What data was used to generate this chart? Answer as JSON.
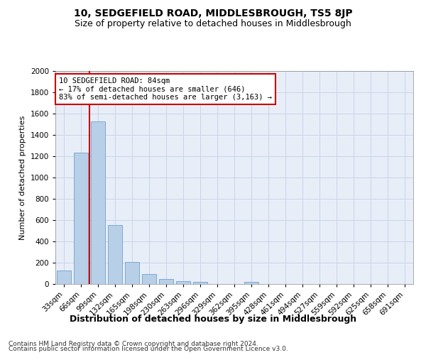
{
  "title": "10, SEDGEFIELD ROAD, MIDDLESBROUGH, TS5 8JP",
  "subtitle": "Size of property relative to detached houses in Middlesbrough",
  "xlabel": "Distribution of detached houses by size in Middlesbrough",
  "ylabel": "Number of detached properties",
  "categories": [
    "33sqm",
    "66sqm",
    "99sqm",
    "132sqm",
    "165sqm",
    "198sqm",
    "230sqm",
    "263sqm",
    "296sqm",
    "329sqm",
    "362sqm",
    "395sqm",
    "428sqm",
    "461sqm",
    "494sqm",
    "527sqm",
    "559sqm",
    "592sqm",
    "625sqm",
    "658sqm",
    "691sqm"
  ],
  "values": [
    130,
    1235,
    1530,
    555,
    210,
    95,
    50,
    28,
    20,
    0,
    0,
    20,
    0,
    0,
    0,
    0,
    0,
    0,
    0,
    0,
    0
  ],
  "bar_color": "#b8cfe8",
  "bar_edge_color": "#6fa0cc",
  "vline_color": "#cc0000",
  "vline_x": 1.5,
  "annotation_text": "10 SEDGEFIELD ROAD: 84sqm\n← 17% of detached houses are smaller (646)\n83% of semi-detached houses are larger (3,163) →",
  "annotation_box_facecolor": "#ffffff",
  "annotation_box_edgecolor": "#cc0000",
  "ylim": [
    0,
    2000
  ],
  "yticks": [
    0,
    200,
    400,
    600,
    800,
    1000,
    1200,
    1400,
    1600,
    1800,
    2000
  ],
  "grid_color": "#c8d4e8",
  "background_color": "#e8eef8",
  "footer_line1": "Contains HM Land Registry data © Crown copyright and database right 2024.",
  "footer_line2": "Contains public sector information licensed under the Open Government Licence v3.0.",
  "title_fontsize": 10,
  "subtitle_fontsize": 9,
  "xlabel_fontsize": 9,
  "ylabel_fontsize": 8,
  "tick_fontsize": 7.5,
  "annotation_fontsize": 7.5,
  "footer_fontsize": 6.5
}
